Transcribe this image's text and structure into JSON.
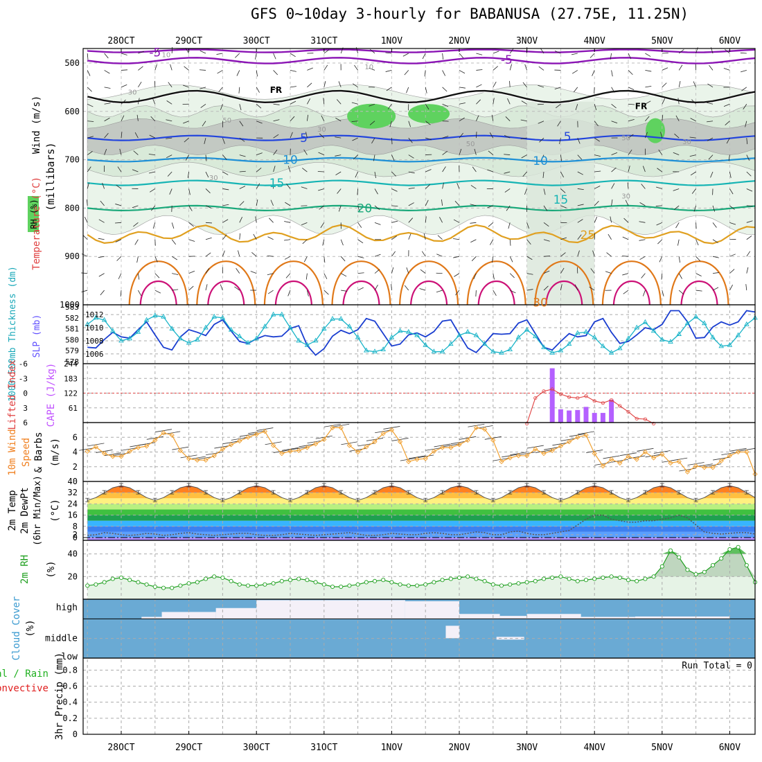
{
  "chart_data": {
    "type": "meteogram",
    "title": "GFS 0~10day 3-hourly for BABANUSA (27.75E, 11.25N)",
    "x_labels": [
      "28OCT",
      "29OCT",
      "30OCT",
      "31OCT",
      "1NOV",
      "2NOV",
      "3NOV",
      "4NOV",
      "5NOV",
      "6NOV"
    ],
    "upper_air": {
      "ylabel_wind": "Wind (m/s)",
      "ylabel_temp": "Temperature (°C)",
      "ylabel_rh": "RH (%)",
      "ylabel_p": "(millibars)",
      "yticks": [
        "500",
        "600",
        "700",
        "800",
        "900",
        "1000"
      ],
      "freezing_label": "FR",
      "isotherm_labels": [
        "-5",
        "-5",
        "5",
        "5",
        "10",
        "10",
        "15",
        "15",
        "20",
        "25",
        "30"
      ],
      "rh_labels": [
        "10",
        "10",
        "30",
        "50",
        "30",
        "30",
        "50",
        "50",
        "30",
        "30"
      ]
    },
    "thickness_slp": {
      "ylabel_thk": "1000-500mb Thickness (dm)",
      "ylabel_slp": "SLP (mb)",
      "thk_ticks": [
        "583",
        "582",
        "581",
        "580",
        "579",
        "578"
      ],
      "slp_ticks": [
        "1012",
        "1010",
        "1008",
        "1006"
      ],
      "slp": [
        1007.0,
        1006.9,
        1008.2,
        1009.3,
        1008.6,
        1008.4,
        1009.7,
        1010.9,
        1008.9,
        1007.0,
        1006.6,
        1008.6,
        1009.7,
        1009.3,
        1008.8,
        1010.5,
        1011.2,
        1009.5,
        1007.9,
        1007.6,
        1008.3,
        1008.8,
        1008.6,
        1008.7,
        1009.9,
        1010.3,
        1007.3,
        1005.8,
        1006.8,
        1008.7,
        1009.6,
        1009.1,
        1009.7,
        1011.4,
        1011.0,
        1009.1,
        1007.2,
        1007.5,
        1008.9,
        1009.2,
        1008.6,
        1009.4,
        1011.0,
        1011.2,
        1009.0,
        1006.9,
        1006.2,
        1007.6,
        1009.1,
        1009.0,
        1009.1,
        1010.7,
        1011.2,
        1009.1,
        1007.0,
        1006.6,
        1007.9,
        1009.1,
        1008.6,
        1008.8,
        1010.9,
        1011.4,
        1009.3,
        1007.6,
        1007.9,
        1008.9,
        1010.0,
        1009.7,
        1010.5,
        1012.6,
        1012.6,
        1010.9,
        1008.4,
        1008.5,
        1010.1,
        1010.9,
        1010.4,
        1010.9,
        1012.6,
        1012.4,
        1010.5,
        1008.2,
        1008.3,
        1009.8,
        1010.9,
        1010.5,
        1010.6,
        1012.1,
        1012.6,
        1010.5,
        1008.3,
        1007.6,
        1008.3,
        1009.1,
        1008.8,
        1008.6,
        1010.6
      ],
      "thk": [
        581.4,
        582.0,
        581.8,
        580.8,
        579.9,
        580.1,
        580.7,
        581.8,
        582.2,
        582.1,
        581.0,
        580.1,
        579.7,
        580.0,
        581.1,
        582.1,
        582.0,
        580.9,
        580.3,
        579.7,
        580.1,
        581.2,
        582.3,
        582.3,
        581.1,
        579.9,
        579.5,
        579.9,
        581.0,
        581.9,
        581.9,
        581.2,
        580.2,
        579.0,
        578.9,
        579.1,
        580.2,
        580.8,
        580.7,
        580.4,
        579.5,
        578.9,
        578.9,
        579.6,
        580.4,
        580.7,
        580.4,
        579.6,
        578.9,
        578.8,
        579.1,
        580.2,
        580.9,
        580.3,
        579.3,
        578.8,
        579.0,
        579.6,
        580.6,
        580.7,
        580.2,
        579.4,
        578.8,
        579.2,
        580.1,
        581.1,
        581.6,
        580.8,
        580.0,
        579.8,
        580.5,
        581.5,
        582.1,
        581.5,
        580.2,
        579.4,
        579.5,
        580.4,
        581.4,
        582.0,
        581.1,
        580.0,
        579.3,
        579.9,
        580.9,
        581.7,
        582.0,
        581.2,
        580.2,
        579.6,
        579.9,
        581.0,
        582.0,
        581.6,
        580.3,
        579.3,
        578.8,
        579.1
      ]
    },
    "cape_li": {
      "ylabel_li": "Lifted Index",
      "ylabel_cape": "CAPE (J/kg)",
      "li_ticks": [
        "-6",
        "-3",
        "0",
        "3",
        "6"
      ],
      "cape_ticks": [
        "244",
        "183",
        "122",
        "61"
      ],
      "cape": [
        [
          6.375,
          225
        ],
        [
          6.5,
          55
        ],
        [
          6.625,
          50
        ],
        [
          6.75,
          52
        ],
        [
          6.875,
          65
        ],
        [
          7.0,
          40
        ],
        [
          7.125,
          40
        ],
        [
          7.25,
          95
        ]
      ],
      "li": [
        [
          6.0,
          6.2
        ],
        [
          6.125,
          1.0
        ],
        [
          6.25,
          -0.4
        ],
        [
          6.375,
          -0.8
        ],
        [
          6.5,
          0.2
        ],
        [
          6.625,
          0.8
        ],
        [
          6.75,
          1.0
        ],
        [
          6.875,
          0.6
        ],
        [
          7.0,
          1.6
        ],
        [
          7.125,
          2.0
        ],
        [
          7.25,
          1.4
        ],
        [
          7.375,
          2.6
        ],
        [
          7.5,
          3.8
        ],
        [
          7.625,
          5.2
        ],
        [
          7.75,
          5.3
        ],
        [
          7.875,
          6.2
        ]
      ]
    },
    "wind10m": {
      "ylabel": "10m Wind Speed & Barbs (m/s)",
      "yticks": [
        "6",
        "4",
        "2"
      ],
      "speed": [
        4.1,
        4.7,
        3.8,
        3.4,
        3.4,
        4.1,
        4.6,
        4.8,
        5.6,
        6.6,
        6.3,
        4.2,
        3.1,
        2.9,
        2.9,
        3.5,
        4.4,
        5.0,
        5.5,
        6.0,
        6.4,
        6.8,
        4.9,
        3.8,
        4.1,
        4.2,
        4.6,
        5.1,
        5.7,
        7.3,
        7.3,
        4.9,
        4.0,
        4.7,
        5.4,
        6.5,
        7.0,
        5.4,
        2.7,
        3.0,
        3.1,
        4.1,
        4.6,
        4.6,
        5.0,
        5.6,
        7.3,
        7.1,
        5.6,
        2.7,
        3.2,
        3.5,
        3.5,
        4.4,
        3.8,
        4.2,
        4.8,
        5.4,
        6.0,
        6.3,
        3.8,
        2.1,
        3.0,
        2.5,
        3.4,
        3.0,
        4.0,
        3.2,
        3.7,
        2.5,
        2.7,
        1.3,
        2.1,
        1.9,
        1.9,
        2.8,
        3.5,
        4.0,
        4.0,
        1.0,
        3.5,
        3.0,
        4.3,
        4.3,
        5.0,
        6.4,
        3.7,
        3.5,
        3.9,
        4.5,
        4.3,
        5.0,
        4.6,
        4.4,
        4.3,
        4.9,
        6.2
      ]
    },
    "temp2m": {
      "ylabel": "2m Temp 2m DewPt (6hr Min/Max) (°C)",
      "yticks": [
        "40",
        "32",
        "24",
        "16",
        "8",
        "2",
        "0"
      ],
      "temp": [
        26.5,
        28.5,
        32,
        35.5,
        37,
        35.5,
        32,
        28.5,
        26.5,
        28.5,
        32,
        35.5,
        37,
        35.5,
        32,
        28.5,
        26.5,
        28.5,
        32,
        35.5,
        37,
        35.5,
        32,
        28.5,
        26.5,
        28.5,
        32,
        35.5,
        37,
        35.5,
        32,
        28.5,
        26.5,
        28.5,
        32,
        35.5,
        37,
        35.5,
        32,
        28.5,
        26.5,
        28.5,
        32,
        35.5,
        37,
        35.5,
        32,
        28.5,
        26.5,
        28.5,
        32,
        35.5,
        37,
        35.5,
        32,
        28.5,
        26.5,
        28.5,
        32,
        35.5,
        37,
        35.5,
        32,
        28.5,
        26.5,
        28.5,
        32,
        35.5,
        37,
        35.5,
        32,
        28.5,
        26.5,
        28.5,
        32,
        35.5,
        37,
        35.5,
        32,
        28.5,
        26.5,
        28.5,
        32,
        35.5,
        37,
        35.5,
        32,
        28.5,
        26.5,
        28.5,
        32,
        35.5,
        37,
        35.5,
        32,
        28.5,
        26.5
      ],
      "dewpt": [
        1.5,
        2,
        3.5,
        3,
        2,
        1.5,
        2,
        3,
        2.5,
        1.5,
        2,
        3,
        3.5,
        2.5,
        2,
        1.5,
        2,
        2.5,
        3,
        3,
        2,
        1.5,
        1.5,
        2,
        3,
        2.5,
        2,
        1.5,
        2,
        2.5,
        3,
        3.5,
        2.5,
        1.5,
        1.5,
        2,
        3,
        2.5,
        2,
        2,
        3,
        3.5,
        3,
        2,
        2,
        3,
        4,
        3.5,
        2,
        2,
        4,
        4.5,
        3,
        2,
        2,
        3,
        4,
        5,
        9,
        13,
        16,
        16,
        13,
        12,
        11,
        11,
        12,
        12,
        13,
        14,
        16,
        14,
        9,
        4,
        3,
        2.5,
        3,
        3.5,
        3.5,
        2.5,
        2,
        2.5,
        3,
        3.5,
        3,
        2.5,
        2,
        2,
        3,
        3.5,
        3,
        2.5,
        2,
        2.5,
        2,
        1,
        0.5
      ]
    },
    "rh2m": {
      "ylabel": "2m RH (%)",
      "yticks": [
        "40",
        "20"
      ],
      "rh": [
        12,
        13,
        15,
        18,
        19,
        17,
        15,
        13,
        11,
        10,
        10,
        12,
        14,
        15,
        18,
        20,
        19,
        16,
        13,
        12,
        12,
        13,
        14,
        16,
        17,
        18,
        17,
        15,
        13,
        11,
        11,
        12,
        13,
        15,
        16,
        17,
        15,
        13,
        12,
        12,
        13,
        15,
        17,
        18,
        19,
        20,
        18,
        16,
        13,
        12,
        13,
        14,
        15,
        16,
        18,
        19,
        20,
        18,
        16,
        17,
        18,
        19,
        20,
        19,
        17,
        16,
        18,
        20,
        29,
        43,
        37,
        26,
        22,
        24,
        30,
        36,
        44,
        46,
        30,
        15,
        14,
        15,
        17,
        18,
        17,
        19,
        21,
        20,
        17,
        15,
        14,
        15,
        17,
        18,
        19,
        18,
        18
      ]
    },
    "cloud": {
      "ylabel": "Cloud Cover (%)",
      "levels": [
        "high",
        "middle",
        "low"
      ]
    },
    "precip": {
      "ylabel": "3hr Precip (mm)",
      "legend_total": "Total / Rain",
      "legend_conv": "Convective",
      "run_total": "Run Total = 0",
      "yticks": [
        "0.8",
        "0.6",
        "0.4",
        "0.2",
        "0"
      ],
      "values": []
    }
  }
}
